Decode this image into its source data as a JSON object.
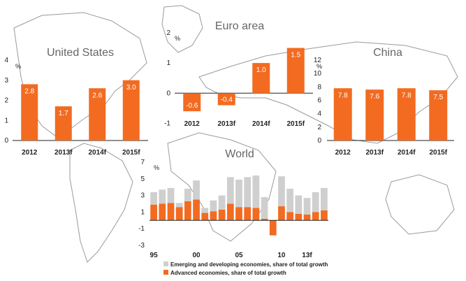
{
  "colors": {
    "bar": "#f26b21",
    "emerging": "#cfcfcf",
    "advanced": "#f26b21",
    "map_stroke": "#9a9a9a"
  },
  "chart_data": [
    {
      "type": "bar",
      "title": "United States",
      "ylabel": "%",
      "categories": [
        "2012",
        "2013f",
        "2014f",
        "2015f"
      ],
      "values": [
        2.8,
        1.7,
        2.6,
        3.0
      ],
      "data_labels": [
        "2.8",
        "1.7",
        "2.6",
        "3.0"
      ],
      "ylim": [
        0,
        4
      ],
      "yticks": [
        "0",
        "1",
        "2",
        "3",
        "4"
      ]
    },
    {
      "type": "bar",
      "title": "Euro area",
      "ylabel": "%",
      "categories": [
        "2012",
        "2013f",
        "2014f",
        "2015f"
      ],
      "values": [
        -0.6,
        -0.4,
        1.0,
        1.5
      ],
      "data_labels": [
        "-0.6",
        "-0.4",
        "1.0",
        "1.5"
      ],
      "ylim": [
        -1.5,
        2
      ],
      "yticks": [
        "-1",
        "0",
        "1",
        "2"
      ]
    },
    {
      "type": "bar",
      "title": "China",
      "ylabel": "%",
      "categories": [
        "2012",
        "2013f",
        "2014f",
        "2015f"
      ],
      "values": [
        7.8,
        7.6,
        7.8,
        7.5
      ],
      "data_labels": [
        "7.8",
        "7.6",
        "7.8",
        "7.5"
      ],
      "ylim": [
        0,
        12
      ],
      "yticks": [
        "0",
        "2",
        "4",
        "6",
        "8",
        "10",
        "12"
      ]
    },
    {
      "type": "bar",
      "stacked": true,
      "title": "World",
      "ylabel": "%",
      "x": [
        1995,
        1996,
        1997,
        1998,
        1999,
        2000,
        2001,
        2002,
        2003,
        2004,
        2005,
        2006,
        2007,
        2008,
        2009,
        2010,
        2011,
        2012,
        2013,
        2014,
        2015
      ],
      "xtick_labels": [
        "95",
        "00",
        "05",
        "10",
        "13f"
      ],
      "xtick_years": [
        1995,
        2000,
        2005,
        2010,
        2013
      ],
      "series": [
        {
          "name": "Advanced economies, share of total growth",
          "color": "#f26b21",
          "values": [
            1.9,
            2.0,
            2.1,
            1.6,
            2.3,
            2.5,
            0.9,
            1.1,
            1.3,
            2.0,
            1.6,
            1.6,
            1.5,
            0.2,
            -1.8,
            1.7,
            1.0,
            0.8,
            0.7,
            1.0,
            1.2
          ]
        },
        {
          "name": "Emerging and developing economies, share of total growth",
          "color": "#cfcfcf",
          "values": [
            1.5,
            1.7,
            1.8,
            0.5,
            1.5,
            2.3,
            0.6,
            1.3,
            1.7,
            3.2,
            3.3,
            3.6,
            3.9,
            2.6,
            0.0,
            3.6,
            2.8,
            2.2,
            2.0,
            2.4,
            2.7
          ]
        }
      ],
      "ylim": [
        -3,
        7
      ],
      "yticks": [
        "-3",
        "-1",
        "1",
        "3",
        "5",
        "7"
      ]
    }
  ]
}
